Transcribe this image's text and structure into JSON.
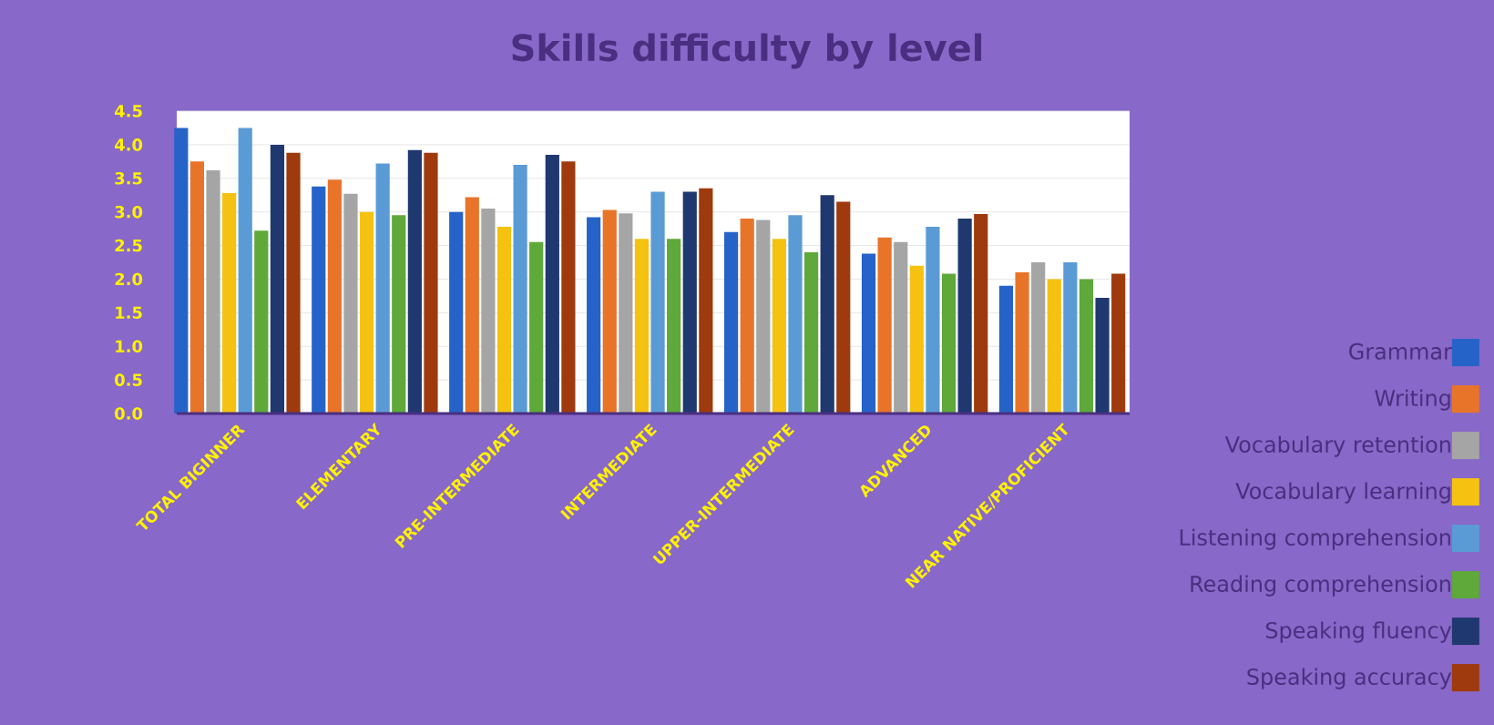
{
  "chart_data": {
    "type": "bar",
    "title": "Skills difficulty by level",
    "categories": [
      "TOTAL BIGINNER",
      "ELEMENTARY",
      "PRE-INTERMEDIATE",
      "INTERMEDIATE",
      "UPPER-INTERMEDIATE",
      "ADVANCED",
      "NEAR NATIVE/PROFICIENT"
    ],
    "series": [
      {
        "name": "Grammar",
        "color": "#2563c9",
        "values": [
          4.25,
          3.38,
          3.0,
          2.92,
          2.7,
          2.38,
          1.9
        ]
      },
      {
        "name": "Writing",
        "color": "#e8742a",
        "values": [
          3.75,
          3.48,
          3.22,
          3.03,
          2.9,
          2.62,
          2.1
        ]
      },
      {
        "name": "Vocabulary retention",
        "color": "#a5a5a5",
        "values": [
          3.62,
          3.27,
          3.05,
          2.98,
          2.88,
          2.55,
          2.25
        ]
      },
      {
        "name": "Vocabulary learning",
        "color": "#f5c211",
        "values": [
          3.28,
          3.0,
          2.78,
          2.6,
          2.6,
          2.2,
          2.0
        ]
      },
      {
        "name": "Listening comprehension",
        "color": "#5b9bd5",
        "values": [
          4.25,
          3.72,
          3.7,
          3.3,
          2.95,
          2.78,
          2.25
        ]
      },
      {
        "name": "Reading comprehension",
        "color": "#5fa83a",
        "values": [
          2.72,
          2.95,
          2.55,
          2.6,
          2.4,
          2.08,
          2.0
        ]
      },
      {
        "name": "Speaking fluency",
        "color": "#1f3870",
        "values": [
          4.0,
          3.92,
          3.85,
          3.3,
          3.25,
          2.9,
          1.72
        ]
      },
      {
        "name": "Speaking accuracy",
        "color": "#9e3a0e",
        "values": [
          3.88,
          3.88,
          3.75,
          3.35,
          3.15,
          2.97,
          2.08
        ]
      }
    ],
    "ylim": [
      0,
      4.5
    ],
    "yticks": [
      {
        "value": 0,
        "label": "0.0"
      },
      {
        "value": 0.5,
        "label": "0.5"
      },
      {
        "value": 1,
        "label": "1.0"
      },
      {
        "value": 1.5,
        "label": "1.5"
      },
      {
        "value": 2,
        "label": "2.0"
      },
      {
        "value": 2.5,
        "label": "2.5"
      },
      {
        "value": 3,
        "label": "3.0"
      },
      {
        "value": 3.5,
        "label": "3.5"
      },
      {
        "value": 4,
        "label": "4.0"
      },
      {
        "value": 4.5,
        "label": "4.5"
      }
    ],
    "grid": "y",
    "legend": "right"
  }
}
